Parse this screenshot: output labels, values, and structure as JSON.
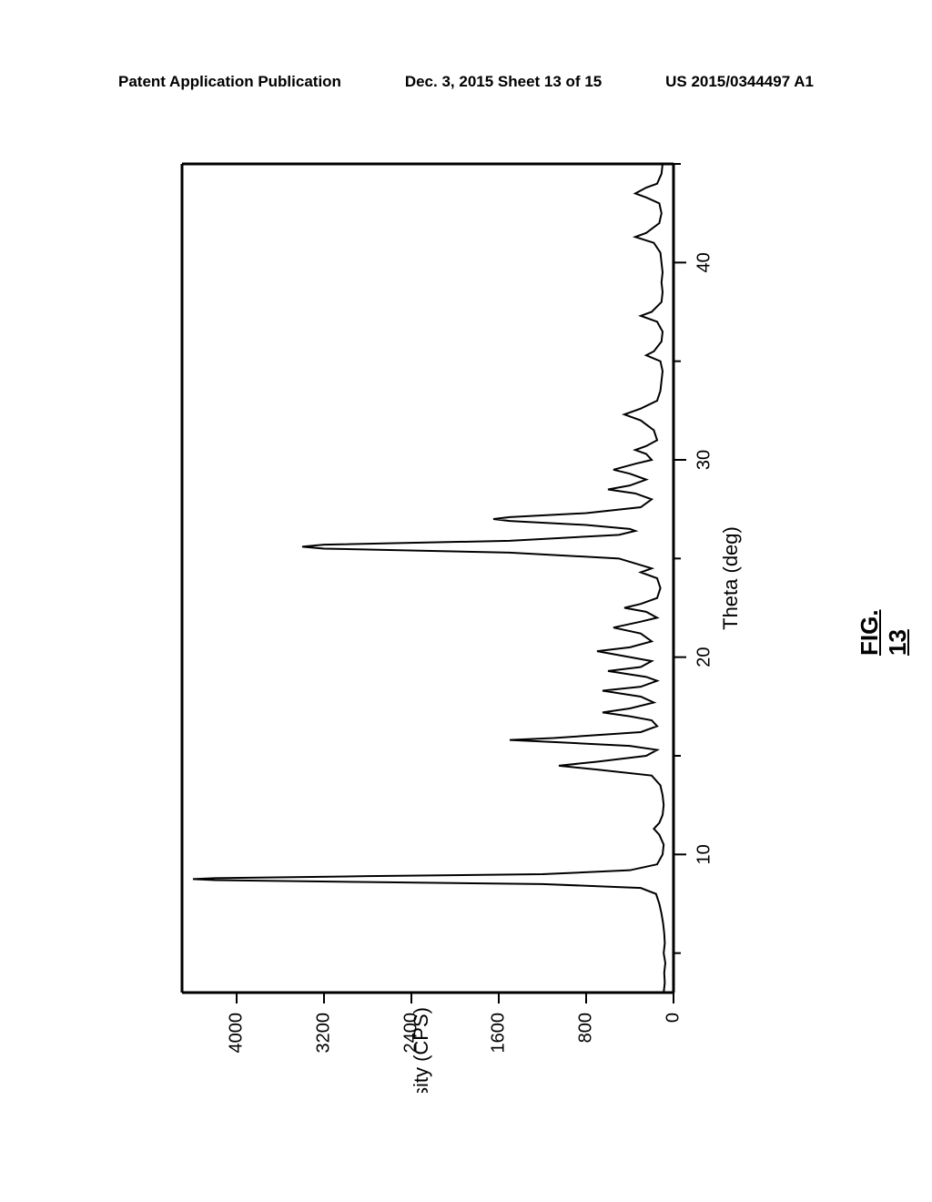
{
  "header": {
    "left": "Patent Application Publication",
    "center": "Dec. 3, 2015   Sheet 13 of 15",
    "right": "US 2015/0344497 A1"
  },
  "figure_label": "FIG. 13",
  "chart": {
    "type": "line",
    "xlabel": "Theta (deg)",
    "ylabel": "Intensity (CPS)",
    "xlim": [
      3,
      45
    ],
    "ylim": [
      0,
      4500
    ],
    "xticks": [
      10,
      20,
      30,
      40
    ],
    "yticks": [
      0,
      800,
      1600,
      2400,
      3200,
      4000
    ],
    "line_color": "#000000",
    "line_width": 2,
    "axis_color": "#000000",
    "axis_width": 3,
    "tick_fontsize": 20,
    "label_fontsize": 22,
    "background_color": "#ffffff",
    "data": [
      {
        "x": 3.0,
        "y": 90
      },
      {
        "x": 3.5,
        "y": 80
      },
      {
        "x": 4.0,
        "y": 85
      },
      {
        "x": 4.5,
        "y": 75
      },
      {
        "x": 5.0,
        "y": 90
      },
      {
        "x": 5.5,
        "y": 80
      },
      {
        "x": 6.0,
        "y": 85
      },
      {
        "x": 6.5,
        "y": 95
      },
      {
        "x": 7.0,
        "y": 110
      },
      {
        "x": 7.5,
        "y": 130
      },
      {
        "x": 8.0,
        "y": 160
      },
      {
        "x": 8.3,
        "y": 300
      },
      {
        "x": 8.5,
        "y": 1200
      },
      {
        "x": 8.6,
        "y": 2800
      },
      {
        "x": 8.7,
        "y": 4200
      },
      {
        "x": 8.75,
        "y": 4400
      },
      {
        "x": 8.8,
        "y": 4200
      },
      {
        "x": 8.9,
        "y": 2800
      },
      {
        "x": 9.0,
        "y": 1200
      },
      {
        "x": 9.2,
        "y": 400
      },
      {
        "x": 9.5,
        "y": 150
      },
      {
        "x": 10.0,
        "y": 100
      },
      {
        "x": 10.5,
        "y": 90
      },
      {
        "x": 11.0,
        "y": 130
      },
      {
        "x": 11.3,
        "y": 180
      },
      {
        "x": 11.6,
        "y": 130
      },
      {
        "x": 12.0,
        "y": 100
      },
      {
        "x": 12.5,
        "y": 90
      },
      {
        "x": 13.0,
        "y": 100
      },
      {
        "x": 13.5,
        "y": 120
      },
      {
        "x": 14.0,
        "y": 200
      },
      {
        "x": 14.3,
        "y": 700
      },
      {
        "x": 14.5,
        "y": 1050
      },
      {
        "x": 14.7,
        "y": 700
      },
      {
        "x": 15.0,
        "y": 250
      },
      {
        "x": 15.3,
        "y": 150
      },
      {
        "x": 15.5,
        "y": 400
      },
      {
        "x": 15.7,
        "y": 1100
      },
      {
        "x": 15.8,
        "y": 1500
      },
      {
        "x": 15.9,
        "y": 1100
      },
      {
        "x": 16.2,
        "y": 300
      },
      {
        "x": 16.5,
        "y": 150
      },
      {
        "x": 16.8,
        "y": 200
      },
      {
        "x": 17.0,
        "y": 400
      },
      {
        "x": 17.2,
        "y": 650
      },
      {
        "x": 17.4,
        "y": 400
      },
      {
        "x": 17.7,
        "y": 180
      },
      {
        "x": 18.0,
        "y": 300
      },
      {
        "x": 18.3,
        "y": 650
      },
      {
        "x": 18.5,
        "y": 300
      },
      {
        "x": 18.8,
        "y": 150
      },
      {
        "x": 19.0,
        "y": 250
      },
      {
        "x": 19.3,
        "y": 600
      },
      {
        "x": 19.5,
        "y": 300
      },
      {
        "x": 19.8,
        "y": 200
      },
      {
        "x": 20.0,
        "y": 400
      },
      {
        "x": 20.3,
        "y": 700
      },
      {
        "x": 20.5,
        "y": 400
      },
      {
        "x": 20.8,
        "y": 200
      },
      {
        "x": 21.2,
        "y": 300
      },
      {
        "x": 21.5,
        "y": 550
      },
      {
        "x": 21.8,
        "y": 300
      },
      {
        "x": 22.0,
        "y": 150
      },
      {
        "x": 22.3,
        "y": 250
      },
      {
        "x": 22.5,
        "y": 450
      },
      {
        "x": 22.7,
        "y": 300
      },
      {
        "x": 23.0,
        "y": 150
      },
      {
        "x": 23.5,
        "y": 120
      },
      {
        "x": 24.0,
        "y": 150
      },
      {
        "x": 24.3,
        "y": 300
      },
      {
        "x": 24.5,
        "y": 200
      },
      {
        "x": 25.0,
        "y": 500
      },
      {
        "x": 25.3,
        "y": 1500
      },
      {
        "x": 25.5,
        "y": 3200
      },
      {
        "x": 25.6,
        "y": 3400
      },
      {
        "x": 25.7,
        "y": 3200
      },
      {
        "x": 25.9,
        "y": 1500
      },
      {
        "x": 26.2,
        "y": 500
      },
      {
        "x": 26.4,
        "y": 350
      },
      {
        "x": 26.5,
        "y": 400
      },
      {
        "x": 26.7,
        "y": 800
      },
      {
        "x": 26.9,
        "y": 1500
      },
      {
        "x": 27.0,
        "y": 1650
      },
      {
        "x": 27.1,
        "y": 1500
      },
      {
        "x": 27.3,
        "y": 800
      },
      {
        "x": 27.6,
        "y": 300
      },
      {
        "x": 28.0,
        "y": 200
      },
      {
        "x": 28.3,
        "y": 350
      },
      {
        "x": 28.5,
        "y": 600
      },
      {
        "x": 28.7,
        "y": 400
      },
      {
        "x": 29.0,
        "y": 250
      },
      {
        "x": 29.3,
        "y": 400
      },
      {
        "x": 29.5,
        "y": 550
      },
      {
        "x": 29.8,
        "y": 350
      },
      {
        "x": 30.0,
        "y": 200
      },
      {
        "x": 30.3,
        "y": 250
      },
      {
        "x": 30.5,
        "y": 350
      },
      {
        "x": 30.7,
        "y": 250
      },
      {
        "x": 31.0,
        "y": 150
      },
      {
        "x": 31.5,
        "y": 180
      },
      {
        "x": 32.0,
        "y": 300
      },
      {
        "x": 32.3,
        "y": 450
      },
      {
        "x": 32.6,
        "y": 300
      },
      {
        "x": 33.0,
        "y": 150
      },
      {
        "x": 33.5,
        "y": 120
      },
      {
        "x": 34.0,
        "y": 110
      },
      {
        "x": 34.5,
        "y": 100
      },
      {
        "x": 35.0,
        "y": 120
      },
      {
        "x": 35.3,
        "y": 250
      },
      {
        "x": 35.5,
        "y": 180
      },
      {
        "x": 36.0,
        "y": 110
      },
      {
        "x": 36.5,
        "y": 100
      },
      {
        "x": 37.0,
        "y": 150
      },
      {
        "x": 37.3,
        "y": 300
      },
      {
        "x": 37.5,
        "y": 200
      },
      {
        "x": 38.0,
        "y": 110
      },
      {
        "x": 38.5,
        "y": 100
      },
      {
        "x": 39.0,
        "y": 110
      },
      {
        "x": 39.5,
        "y": 100
      },
      {
        "x": 40.0,
        "y": 110
      },
      {
        "x": 40.5,
        "y": 120
      },
      {
        "x": 41.0,
        "y": 180
      },
      {
        "x": 41.3,
        "y": 350
      },
      {
        "x": 41.5,
        "y": 250
      },
      {
        "x": 42.0,
        "y": 130
      },
      {
        "x": 42.5,
        "y": 110
      },
      {
        "x": 43.0,
        "y": 130
      },
      {
        "x": 43.3,
        "y": 250
      },
      {
        "x": 43.5,
        "y": 350
      },
      {
        "x": 43.8,
        "y": 250
      },
      {
        "x": 44.0,
        "y": 150
      },
      {
        "x": 44.5,
        "y": 110
      },
      {
        "x": 45.0,
        "y": 100
      }
    ]
  }
}
